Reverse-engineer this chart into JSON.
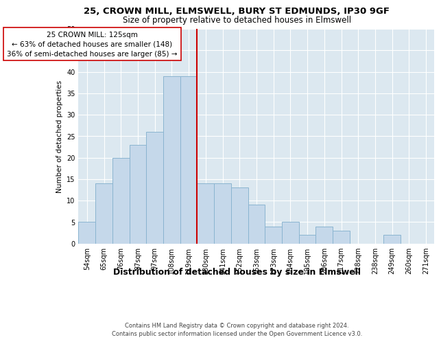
{
  "title1": "25, CROWN MILL, ELMSWELL, BURY ST EDMUNDS, IP30 9GF",
  "title2": "Size of property relative to detached houses in Elmswell",
  "xlabel": "Distribution of detached houses by size in Elmswell",
  "ylabel": "Number of detached properties",
  "categories": [
    "54sqm",
    "65sqm",
    "76sqm",
    "87sqm",
    "97sqm",
    "108sqm",
    "119sqm",
    "130sqm",
    "141sqm",
    "152sqm",
    "163sqm",
    "173sqm",
    "184sqm",
    "195sqm",
    "206sqm",
    "217sqm",
    "228sqm",
    "238sqm",
    "249sqm",
    "260sqm",
    "271sqm"
  ],
  "heights": [
    5,
    14,
    20,
    23,
    26,
    39,
    39,
    14,
    14,
    13,
    9,
    4,
    5,
    2,
    4,
    3,
    0,
    0,
    2,
    0,
    0
  ],
  "bar_color": "#c5d8ea",
  "bar_edge_color": "#8ab4d0",
  "ref_line_color": "#cc0000",
  "ref_bar_index": 7,
  "annotation_text": "25 CROWN MILL: 125sqm\n← 63% of detached houses are smaller (148)\n36% of semi-detached houses are larger (85) →",
  "bg_color": "#dce8f0",
  "grid_color": "#ffffff",
  "footer": "Contains HM Land Registry data © Crown copyright and database right 2024.\nContains public sector information licensed under the Open Government Licence v3.0.",
  "ylim": [
    0,
    50
  ],
  "yticks": [
    0,
    5,
    10,
    15,
    20,
    25,
    30,
    35,
    40,
    45,
    50
  ],
  "title1_fontsize": 9.5,
  "title2_fontsize": 8.5,
  "ylabel_fontsize": 7.5,
  "xlabel_fontsize": 9,
  "tick_fontsize": 7,
  "annot_fontsize": 7.5,
  "footer_fontsize": 6
}
